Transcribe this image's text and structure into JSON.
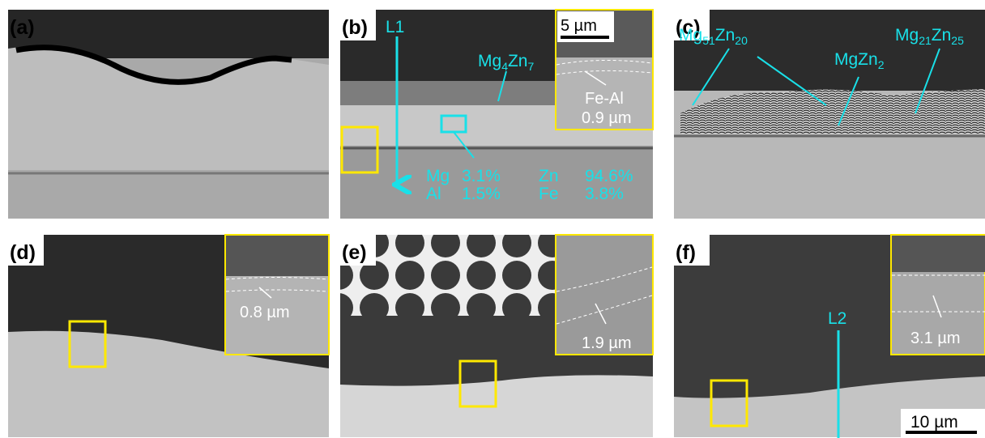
{
  "panels": [
    {
      "label": "(a)"
    },
    {
      "label": "(b)",
      "line": "L1",
      "phase": [
        "Mg",
        "4",
        "Zn",
        "7"
      ],
      "scale": "5 µm",
      "layer": "Fe-Al",
      "thickness": "0.9 µm",
      "composition": [
        [
          "Mg",
          "3.1%",
          "Zn",
          "94.6%"
        ],
        [
          "Al",
          "1.5%",
          "Fe",
          "3.8%"
        ]
      ]
    },
    {
      "label": "(c)",
      "phases": [
        [
          "Mg",
          "51",
          "Zn",
          "20"
        ],
        [
          "MgZn",
          "2"
        ],
        [
          "Mg",
          "21",
          "Zn",
          "25"
        ]
      ]
    },
    {
      "label": "(d)",
      "thickness": "0.8 µm"
    },
    {
      "label": "(e)",
      "thickness": "1.9 µm"
    },
    {
      "label": "(f)",
      "line": "L2",
      "thickness": "3.1 µm",
      "scale": "10 µm"
    }
  ]
}
